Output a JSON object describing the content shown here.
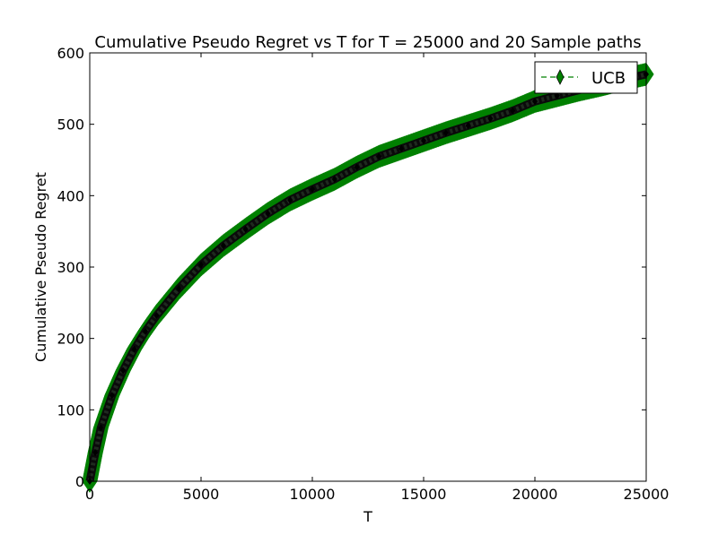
{
  "chart_data": {
    "type": "line",
    "title": "Cumulative Pseudo Regret vs T for T = 25000 and 20 Sample paths",
    "xlabel": "T",
    "ylabel": "Cumulative Pseudo Regret",
    "xlim": [
      0,
      25000
    ],
    "ylim": [
      0,
      600
    ],
    "xticks": [
      0,
      5000,
      10000,
      15000,
      20000,
      25000
    ],
    "xtick_labels": [
      "0",
      "5000",
      "10000",
      "15000",
      "20000",
      "25000"
    ],
    "yticks": [
      0,
      100,
      200,
      300,
      400,
      500,
      600
    ],
    "ytick_labels": [
      "0",
      "100",
      "200",
      "300",
      "400",
      "500",
      "600"
    ],
    "grid": false,
    "legend_position": "top-right",
    "x": [
      0,
      250,
      500,
      1000,
      1500,
      2000,
      2500,
      3000,
      4000,
      5000,
      6000,
      7000,
      8000,
      9000,
      10000,
      11000,
      12000,
      13000,
      14000,
      15000,
      16000,
      17000,
      18000,
      19000,
      20000,
      21000,
      22000,
      23000,
      24000,
      25000
    ],
    "series": [
      {
        "name": "UCB",
        "color": "#008000",
        "marker": "diamond",
        "linestyle": "dashed",
        "values": [
          0,
          40,
          75,
          120,
          155,
          185,
          210,
          232,
          270,
          303,
          330,
          353,
          375,
          394,
          409,
          423,
          440,
          455,
          466,
          477,
          488,
          498,
          508,
          519,
          532,
          540,
          548,
          555,
          563,
          570
        ]
      }
    ]
  }
}
